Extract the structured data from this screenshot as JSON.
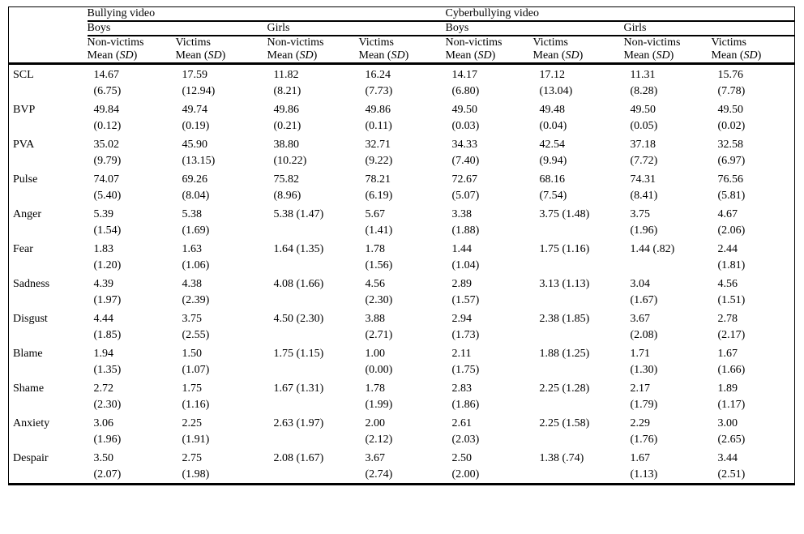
{
  "table": {
    "group_headers": [
      {
        "label": "Bullying video"
      },
      {
        "label": "Cyberbullying video"
      }
    ],
    "gender_headers": [
      {
        "label": "Boys"
      },
      {
        "label": "Girls"
      },
      {
        "label": "Boys"
      },
      {
        "label": "Girls"
      }
    ],
    "victim_headers": [
      {
        "label": "Non-victims"
      },
      {
        "label": "Victims"
      },
      {
        "label": "Non-victims"
      },
      {
        "label": "Victims"
      },
      {
        "label": "Non-victims"
      },
      {
        "label": "Victims"
      },
      {
        "label": "Non-victims"
      },
      {
        "label": "Victims"
      }
    ],
    "mean_sd": {
      "pre": "Mean (",
      "sd": "SD",
      "post": ")"
    },
    "rows": [
      {
        "label": "SCL",
        "cells": [
          "14.67\n(6.75)",
          "17.59\n(12.94)",
          "11.82\n(8.21)",
          "16.24\n(7.73)",
          "14.17\n(6.80)",
          "17.12\n(13.04)",
          "11.31\n(8.28)",
          "15.76\n(7.78)"
        ]
      },
      {
        "label": "BVP",
        "cells": [
          "49.84\n(0.12)",
          "49.74\n(0.19)",
          "49.86\n(0.21)",
          "49.86\n(0.11)",
          "49.50\n(0.03)",
          "49.48\n(0.04)",
          "49.50\n(0.05)",
          "49.50\n(0.02)"
        ]
      },
      {
        "label": "PVA",
        "cells": [
          "35.02\n(9.79)",
          "45.90\n(13.15)",
          "38.80\n(10.22)",
          "32.71\n(9.22)",
          "34.33\n(7.40)",
          "42.54\n(9.94)",
          "37.18\n(7.72)",
          "32.58\n(6.97)"
        ]
      },
      {
        "label": "Pulse",
        "cells": [
          "74.07\n(5.40)",
          "69.26\n(8.04)",
          "75.82\n(8.96)",
          "78.21\n(6.19)",
          "72.67\n(5.07)",
          "68.16\n(7.54)",
          "74.31\n(8.41)",
          "76.56\n(5.81)"
        ]
      },
      {
        "label": "Anger",
        "cells": [
          "5.39\n(1.54)",
          "5.38\n(1.69)",
          "5.38 (1.47)",
          "5.67\n(1.41)",
          "3.38\n(1.88)",
          "3.75 (1.48)",
          "3.75\n(1.96)",
          "4.67\n(2.06)"
        ]
      },
      {
        "label": "Fear",
        "cells": [
          "1.83\n(1.20)",
          "1.63\n(1.06)",
          "1.64 (1.35)",
          "1.78\n(1.56)",
          "1.44\n(1.04)",
          "1.75 (1.16)",
          "1.44 (.82)",
          "2.44\n(1.81)"
        ]
      },
      {
        "label": "Sadness",
        "cells": [
          "4.39\n(1.97)",
          "4.38\n(2.39)",
          "4.08 (1.66)",
          "4.56\n(2.30)",
          "2.89\n(1.57)",
          "3.13 (1.13)",
          "3.04\n(1.67)",
          "4.56\n(1.51)"
        ]
      },
      {
        "label": "Disgust",
        "cells": [
          "4.44\n(1.85)",
          "3.75\n(2.55)",
          "4.50 (2.30)",
          "3.88\n(2.71)",
          "2.94\n(1.73)",
          "2.38 (1.85)",
          "3.67\n(2.08)",
          "2.78\n(2.17)"
        ]
      },
      {
        "label": "Blame",
        "cells": [
          "1.94\n(1.35)",
          "1.50\n(1.07)",
          "1.75 (1.15)",
          "1.00\n(0.00)",
          "2.11\n(1.75)",
          "1.88 (1.25)",
          "1.71\n(1.30)",
          "1.67\n(1.66)"
        ]
      },
      {
        "label": "Shame",
        "cells": [
          "2.72\n(2.30)",
          "1.75\n(1.16)",
          "1.67 (1.31)",
          "1.78\n(1.99)",
          "2.83\n(1.86)",
          "2.25 (1.28)",
          "2.17\n(1.79)",
          "1.89\n(1.17)"
        ]
      },
      {
        "label": "Anxiety",
        "cells": [
          "3.06\n(1.96)",
          "2.25\n(1.91)",
          "2.63 (1.97)",
          "2.00\n(2.12)",
          "2.61\n(2.03)",
          "2.25 (1.58)",
          "2.29\n(1.76)",
          "3.00\n(2.65)"
        ]
      },
      {
        "label": "Despair",
        "cells": [
          "3.50\n(2.07)",
          "2.75\n(1.98)",
          "2.08 (1.67)",
          "3.67\n(2.74)",
          "2.50\n(2.00)",
          "1.38 (.74)",
          "1.67\n(1.13)",
          "3.44\n(2.51)"
        ]
      }
    ]
  }
}
